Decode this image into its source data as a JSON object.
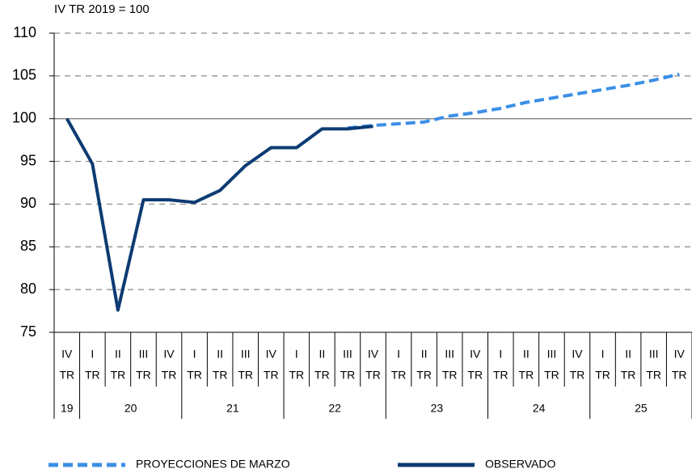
{
  "chart_data": {
    "type": "line",
    "subtitle": "IV TR 2019 = 100",
    "categories": [
      "IV",
      "I",
      "II",
      "III",
      "IV",
      "I",
      "II",
      "III",
      "IV",
      "I",
      "II",
      "III",
      "IV",
      "I",
      "II",
      "III",
      "IV",
      "I",
      "II",
      "III",
      "IV",
      "I",
      "II",
      "III",
      "IV"
    ],
    "quarter_label": "TR",
    "groups": [
      {
        "label": "19",
        "count": 1
      },
      {
        "label": "20",
        "count": 4
      },
      {
        "label": "21",
        "count": 4
      },
      {
        "label": "22",
        "count": 4
      },
      {
        "label": "23",
        "count": 4
      },
      {
        "label": "24",
        "count": 4
      },
      {
        "label": "25",
        "count": 4
      }
    ],
    "series": [
      {
        "name": "PROYECCIONES DE MARZO",
        "color": "#3b8fe6",
        "dashed": true,
        "values": [
          null,
          null,
          null,
          null,
          null,
          null,
          null,
          null,
          null,
          null,
          null,
          98.9,
          99.2,
          99.4,
          99.6,
          100.3,
          100.7,
          101.2,
          101.9,
          102.4,
          102.9,
          103.4,
          103.9,
          104.5,
          105.2
        ]
      },
      {
        "name": "OBSERVADO",
        "color": "#0d3b73",
        "dashed": false,
        "values": [
          100,
          94.7,
          77.6,
          90.5,
          90.5,
          90.2,
          91.6,
          94.5,
          96.6,
          96.6,
          98.8,
          98.8,
          99.1,
          null,
          null,
          null,
          null,
          null,
          null,
          null,
          null,
          null,
          null,
          null,
          null
        ]
      }
    ],
    "ylim": [
      75,
      110
    ],
    "yticks": [
      75,
      80,
      85,
      90,
      95,
      100,
      105,
      110
    ],
    "grid": true,
    "reference_line": 100,
    "legend": "bottom"
  }
}
